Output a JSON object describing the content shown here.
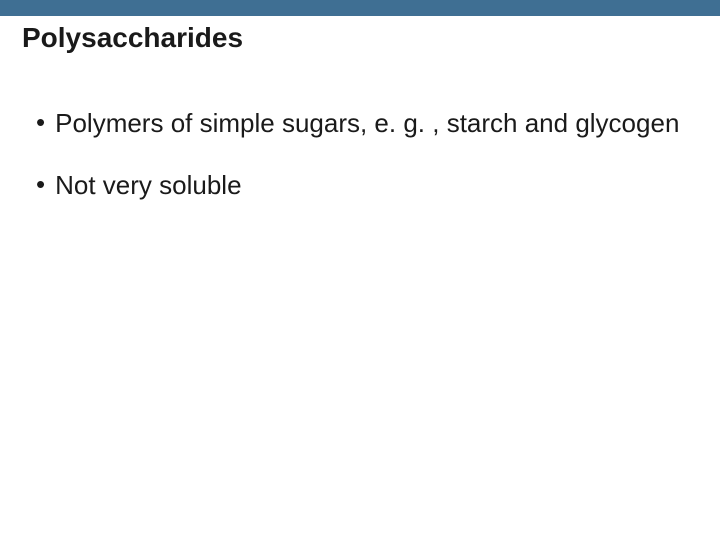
{
  "slide": {
    "title": "Polysaccharides",
    "header_bar_color": "#3f6f93",
    "background_color": "#ffffff",
    "title_fontsize": 28,
    "body_fontsize": 26,
    "text_color": "#1a1a1a",
    "bullets": [
      {
        "text": "Polymers of simple sugars, e. g. , starch and glycogen"
      },
      {
        "text": "Not very soluble"
      }
    ]
  }
}
